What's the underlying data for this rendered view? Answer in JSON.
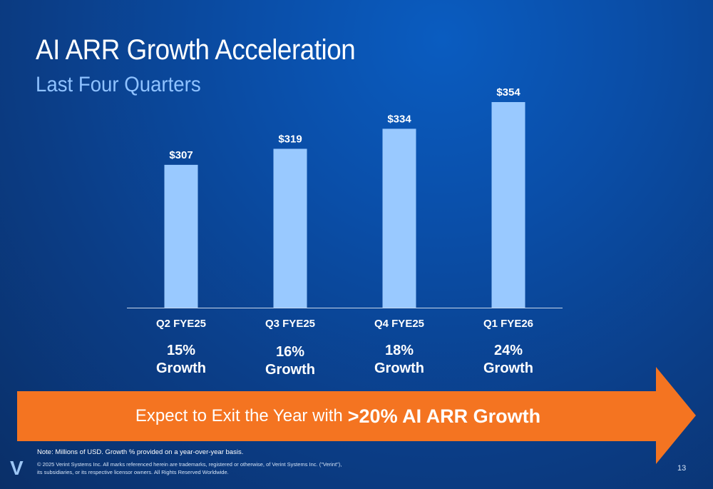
{
  "header": {
    "title": "AI ARR Growth Acceleration",
    "subtitle": "Last Four Quarters"
  },
  "chart_data": {
    "type": "bar",
    "categories": [
      "Q2 FYE25",
      "Q3 FYE25",
      "Q4 FYE25",
      "Q1 FYE26"
    ],
    "values": [
      307,
      319,
      334,
      354
    ],
    "value_labels": [
      "$307",
      "$319",
      "$334",
      "$354"
    ],
    "growth": [
      {
        "pct": "15%",
        "label": "Growth"
      },
      {
        "pct": "16%",
        "label": "Growth"
      },
      {
        "pct": "18%",
        "label": "Growth"
      },
      {
        "pct": "24%",
        "label": "Growth"
      }
    ],
    "ylim": [
      200,
      360
    ],
    "bar_color": "#99c9ff",
    "grid": false
  },
  "banner": {
    "text_prefix": "Expect to Exit the Year with",
    "text_bold": ">20% AI ARR Growth",
    "color": "#f47421"
  },
  "footer": {
    "note": "Note: Millions of USD. Growth % provided on a year-over-year basis.",
    "copyright_line1": "© 2025 Verint Systems Inc. All marks referenced herein are trademarks, registered or otherwise, of Verint Systems Inc. (\"Verint\"),",
    "copyright_line2": "its subsidiaries, or its respective licensor owners. All Rights Reserved Worldwide.",
    "logo": "V",
    "page_number": "13"
  }
}
